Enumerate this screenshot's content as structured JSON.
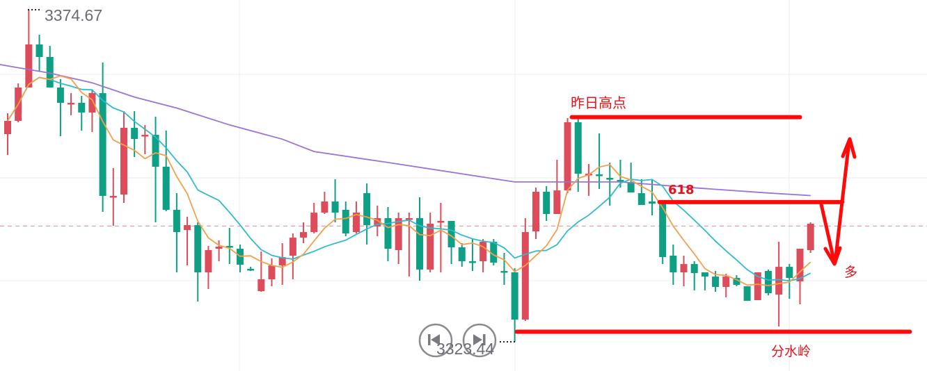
{
  "chart_data": {
    "type": "candlestick",
    "title": "",
    "xlabel": "",
    "ylabel": "",
    "ylim": [
      3318.94,
      3376.17
    ],
    "grid": true,
    "colors": {
      "up": "#dc4c5a",
      "down": "#0e9f84",
      "ma_fast": "#f4a04a",
      "ma_mid": "#2ebbd0",
      "ma_slow": "#9b72d8",
      "annotation": "#ff0a0a",
      "current_price_line": "#e0a0aa"
    },
    "ma_fast_period": 5,
    "ma_mid_period": 10,
    "ohlc": [
      [
        3355.48,
        3358.7,
        3352.27,
        3357.52
      ],
      [
        3357.52,
        3363.31,
        3357.31,
        3362.67
      ],
      [
        3362.67,
        3374.67,
        3362.67,
        3369.31
      ],
      [
        3369.31,
        3370.81,
        3365.24,
        3367.38
      ],
      [
        3367.38,
        3369.1,
        3362.67,
        3362.67
      ],
      [
        3362.67,
        3363.95,
        3355.16,
        3360.31
      ],
      [
        3360.2,
        3361.81,
        3358.38,
        3360.31
      ],
      [
        3360.31,
        3361.38,
        3356.02,
        3358.81
      ],
      [
        3358.81,
        3362.24,
        3355.81,
        3361.81
      ],
      [
        3361.81,
        3366.52,
        3343.48,
        3345.95
      ],
      [
        3345.84,
        3350.23,
        3341.34,
        3345.95
      ],
      [
        3346.16,
        3359.02,
        3344.87,
        3356.45
      ],
      [
        3356.45,
        3359.02,
        3351.95,
        3354.73
      ],
      [
        3355.16,
        3356.88,
        3352.38,
        3355.38
      ],
      [
        3355.38,
        3358.16,
        3341.87,
        3350.45
      ],
      [
        3350.45,
        3356.02,
        3343.59,
        3343.8
      ],
      [
        3343.8,
        3346.37,
        3334.16,
        3340.37
      ],
      [
        3340.69,
        3342.73,
        3335.23,
        3341.44
      ],
      [
        3341.44,
        3341.87,
        3329.66,
        3334.16
      ],
      [
        3334.16,
        3338.23,
        3331.59,
        3337.59
      ],
      [
        3337.8,
        3339.09,
        3335.87,
        3338.12
      ],
      [
        3338.23,
        3341.02,
        3335.44,
        3338.02
      ],
      [
        3337.8,
        3338.44,
        3334.16,
        3335.34
      ],
      [
        3334.7,
        3335.01,
        3334.37,
        3334.48
      ],
      [
        3331.26,
        3337.37,
        3331.16,
        3333.09
      ],
      [
        3333.09,
        3336.3,
        3332.01,
        3335.23
      ],
      [
        3335.23,
        3338.66,
        3332.23,
        3336.52
      ],
      [
        3336.73,
        3340.16,
        3333.09,
        3339.51
      ],
      [
        3339.51,
        3341.87,
        3338.66,
        3340.37
      ],
      [
        3340.37,
        3344.87,
        3340.16,
        3343.37
      ],
      [
        3343.37,
        3346.59,
        3343.16,
        3345.09
      ],
      [
        3345.09,
        3348.52,
        3341.87,
        3343.37
      ],
      [
        3343.8,
        3345.09,
        3339.73,
        3340.16
      ],
      [
        3340.37,
        3345.09,
        3340.16,
        3343.37
      ],
      [
        3346.37,
        3347.87,
        3338.44,
        3341.44
      ],
      [
        3341.23,
        3344.45,
        3339.73,
        3342.52
      ],
      [
        3342.52,
        3344.23,
        3335.87,
        3337.8
      ],
      [
        3337.59,
        3343.37,
        3335.44,
        3342.52
      ],
      [
        3342.3,
        3343.37,
        3333.51,
        3342.52
      ],
      [
        3342.52,
        3345.73,
        3332.87,
        3334.59
      ],
      [
        3334.59,
        3343.37,
        3334.16,
        3341.66
      ],
      [
        3341.87,
        3344.87,
        3334.16,
        3342.09
      ],
      [
        3342.09,
        3342.09,
        3335.44,
        3338.02
      ],
      [
        3338.02,
        3338.66,
        3335.01,
        3335.87
      ],
      [
        3335.87,
        3339.3,
        3334.37,
        3335.76
      ],
      [
        3335.87,
        3339.3,
        3334.16,
        3338.87
      ],
      [
        3338.87,
        3339.3,
        3335.23,
        3335.66
      ],
      [
        3334.37,
        3337.16,
        3332.23,
        3334.27
      ],
      [
        3334.16,
        3334.8,
        3323.44,
        3326.87
      ],
      [
        3326.87,
        3342.52,
        3326.66,
        3340.37
      ],
      [
        3340.48,
        3347.23,
        3339.3,
        3346.59
      ],
      [
        3346.59,
        3347.45,
        3342.09,
        3343.16
      ],
      [
        3343.16,
        3351.52,
        3343.16,
        3346.8
      ],
      [
        3346.8,
        3357.95,
        3346.37,
        3357.31
      ],
      [
        3357.31,
        3357.95,
        3346.59,
        3349.38
      ],
      [
        3349.27,
        3350.88,
        3345.95,
        3349.38
      ],
      [
        3349.27,
        3355.59,
        3347.02,
        3349.16
      ],
      [
        3348.73,
        3351.09,
        3344.45,
        3348.62
      ],
      [
        3348.41,
        3351.52,
        3347.23,
        3348.3
      ],
      [
        3348.09,
        3351.09,
        3346.48,
        3346.48
      ],
      [
        3346.37,
        3348.52,
        3344.55,
        3344.55
      ],
      [
        3345.09,
        3348.52,
        3342.94,
        3344.77
      ],
      [
        3344.87,
        3345.3,
        3335.44,
        3336.52
      ],
      [
        3336.73,
        3338.44,
        3332.23,
        3334.16
      ],
      [
        3334.16,
        3336.73,
        3332.01,
        3335.44
      ],
      [
        3335.44,
        3335.87,
        3331.37,
        3334.05
      ],
      [
        3334.16,
        3334.16,
        3331.37,
        3333.51
      ],
      [
        3333.51,
        3334.37,
        3331.16,
        3331.91
      ],
      [
        3331.91,
        3333.94,
        3330.3,
        3333.51
      ],
      [
        3333.3,
        3333.72,
        3332.01,
        3332.23
      ],
      [
        3332.01,
        3332.01,
        3329.76,
        3329.76
      ],
      [
        3329.87,
        3334.16,
        3329.87,
        3334.16
      ],
      [
        3334.37,
        3334.59,
        3330.62,
        3330.94
      ],
      [
        3330.73,
        3338.87,
        3325.8,
        3335.01
      ],
      [
        3335.01,
        3335.44,
        3330.08,
        3333.3
      ],
      [
        3332.76,
        3337.8,
        3329.23,
        3337.8
      ],
      [
        3337.59,
        3341.87,
        3337.16,
        3341.66
      ]
    ],
    "ma_slow": [
      [
        0,
        3366.0
      ],
      [
        4,
        3364.9
      ],
      [
        8,
        3363.4
      ],
      [
        12,
        3361.2
      ],
      [
        16,
        3359.5
      ],
      [
        21,
        3356.9
      ],
      [
        26,
        3354.7
      ],
      [
        29,
        3352.8
      ],
      [
        36,
        3351.1
      ],
      [
        42,
        3349.6
      ],
      [
        48,
        3348.1
      ],
      [
        52,
        3348.1
      ],
      [
        58,
        3348.1
      ],
      [
        65,
        3347.2
      ],
      [
        72,
        3346.4
      ],
      [
        76,
        3346.0
      ]
    ],
    "current_price_line": 3341.3,
    "high_label": "3374.67",
    "low_label": "3323.44",
    "annotations": {
      "yesterday_high": {
        "text": "昨日高点",
        "price": 3358.1,
        "from_index": 53.4,
        "to_index": 75.0
      },
      "fib_618": {
        "text": "618",
        "price": 3345.0,
        "from_index": 61.7,
        "to_index": 79.0
      },
      "watershed": {
        "text": "分水岭",
        "price": 3325.0,
        "from_index": 48.2,
        "to_index": 85.4
      },
      "long": {
        "text": "多"
      }
    }
  },
  "controls": {
    "prev_icon": "skip-back-icon",
    "next_icon": "skip-forward-icon"
  }
}
